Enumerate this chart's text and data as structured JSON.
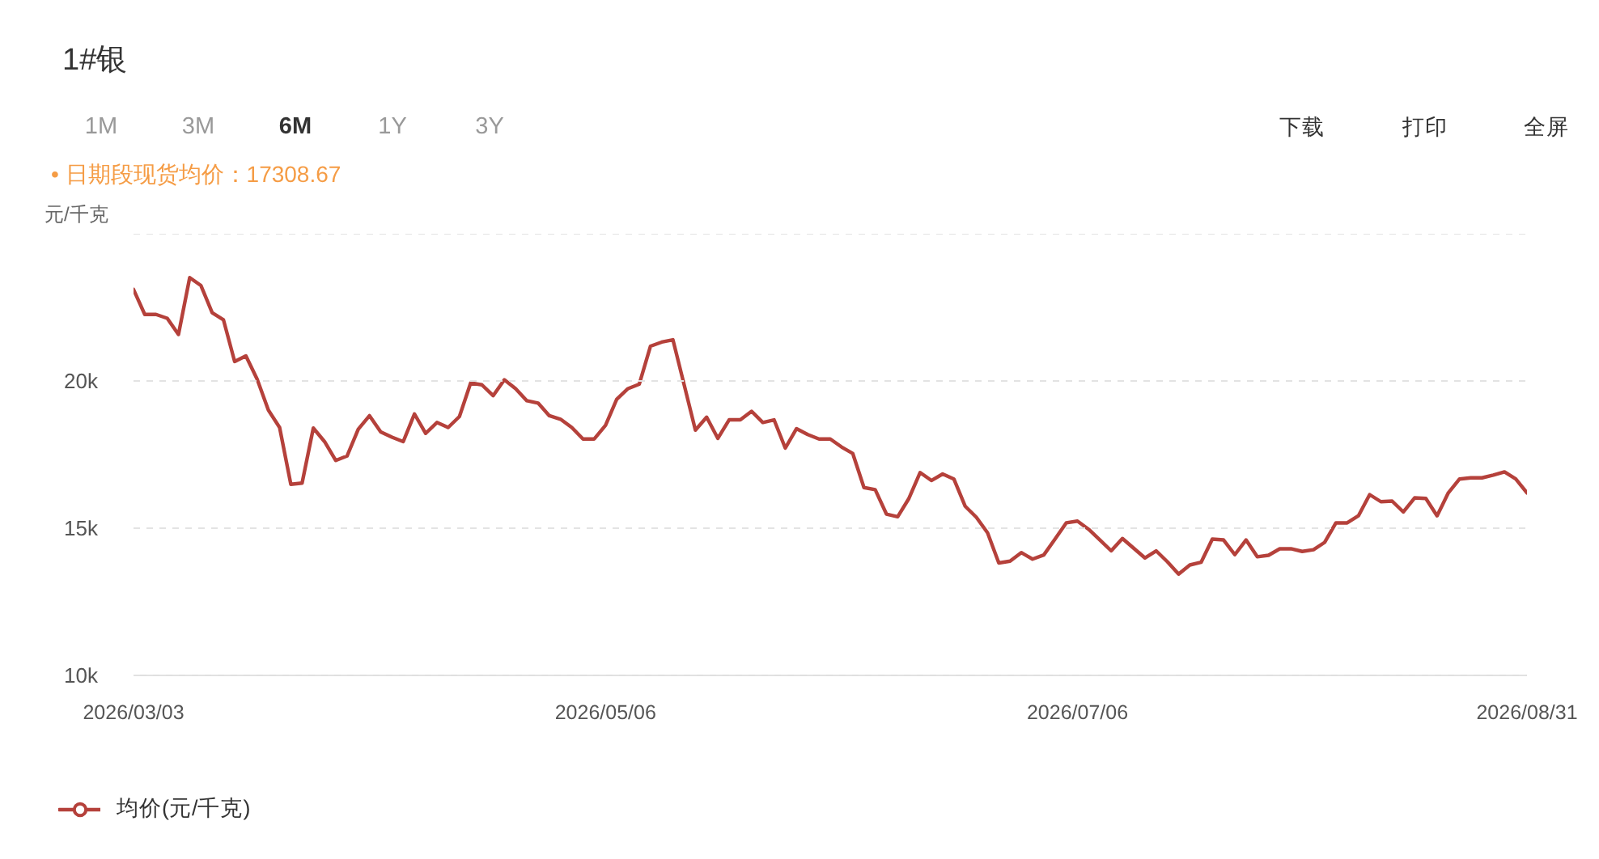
{
  "chart_data": {
    "type": "line",
    "title": "1#银",
    "subtitle": "• 日期段现货均价：17308.67",
    "ylabel": "元/千克",
    "annotations": [
      "1M",
      "3M",
      "6M",
      "1Y",
      "3Y",
      "下载",
      "打印",
      "全屏"
    ],
    "categories": [
      "2026/03/03",
      null,
      null,
      null,
      null,
      null,
      null,
      null,
      null,
      null,
      null,
      null,
      null,
      null,
      null,
      null,
      null,
      null,
      null,
      null,
      null,
      null,
      null,
      null,
      null,
      null,
      null,
      null,
      null,
      null,
      null,
      null,
      null,
      null,
      null,
      null,
      null,
      null,
      null,
      null,
      null,
      null,
      "2026/05/06",
      null,
      null,
      null,
      null,
      null,
      null,
      null,
      null,
      null,
      null,
      null,
      null,
      null,
      null,
      null,
      null,
      null,
      null,
      null,
      null,
      null,
      null,
      null,
      null,
      null,
      null,
      null,
      null,
      null,
      null,
      null,
      null,
      null,
      null,
      null,
      null,
      null,
      null,
      null,
      null,
      null,
      "2026/07/06",
      null,
      null,
      null,
      null,
      null,
      null,
      null,
      null,
      null,
      null,
      null,
      null,
      null,
      null,
      null,
      null,
      null,
      null,
      null,
      null,
      null,
      null,
      null,
      null,
      null,
      null,
      null,
      null,
      null,
      null,
      null,
      null,
      null,
      null,
      null,
      null,
      null,
      null,
      null,
      "2026/08/31"
    ],
    "series": [
      {
        "name": "均价(元/千克)",
        "color": "#b5413b",
        "values": [
          23110,
          22260,
          22260,
          22130,
          21580,
          23510,
          23240,
          22320,
          22080,
          20660,
          20850,
          20060,
          19010,
          18420,
          16490,
          16530,
          18400,
          17940,
          17300,
          17450,
          18360,
          18820,
          18270,
          18090,
          17940,
          18880,
          18220,
          18590,
          18420,
          18790,
          19930,
          19870,
          19500,
          20040,
          19740,
          19330,
          19250,
          18820,
          18700,
          18420,
          18030,
          18030,
          18490,
          19380,
          19740,
          19890,
          21180,
          21320,
          21400,
          19870,
          18330,
          18770,
          18050,
          18680,
          18680,
          18970,
          18590,
          18680,
          17720,
          18380,
          18180,
          18030,
          18030,
          17760,
          17540,
          16380,
          16310,
          15480,
          15390,
          16010,
          16890,
          16620,
          16840,
          16670,
          15750,
          15370,
          14840,
          13820,
          13880,
          14170,
          13950,
          14090,
          14630,
          15180,
          15240,
          14960,
          14600,
          14230,
          14650,
          14320,
          13990,
          14230,
          13860,
          13440,
          13750,
          13840,
          14630,
          14600,
          14100,
          14600,
          14030,
          14080,
          14300,
          14300,
          14210,
          14270,
          14520,
          15180,
          15180,
          15420,
          16140,
          15900,
          15920,
          15550,
          16030,
          16010,
          15420,
          16200,
          16670,
          16710,
          16710,
          16800,
          16910,
          16670,
          16200
        ]
      }
    ],
    "ylim": [
      10000,
      25000
    ],
    "yticks": [
      {
        "value": 10000,
        "label": "10k"
      },
      {
        "value": 15000,
        "label": "15k"
      },
      {
        "value": 20000,
        "label": "20k"
      },
      {
        "value": 25000,
        "label": null
      }
    ],
    "grid": "y",
    "legend": "bottom left"
  }
}
